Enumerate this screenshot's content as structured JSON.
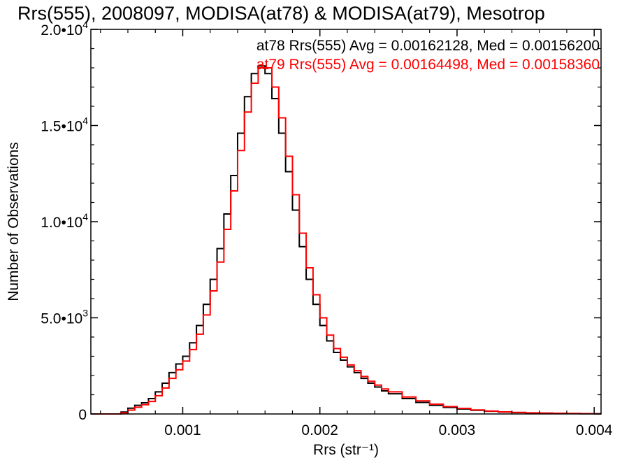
{
  "chart_data": {
    "type": "line",
    "step": true,
    "title": "Rrs(555), 2008097, MODISA(at78) & MODISA(at79), Mesotrop",
    "xlabel": "Rrs (str⁻¹)",
    "ylabel": "Number of Observations",
    "xlim": [
      0.00033,
      0.00405
    ],
    "ylim": [
      0,
      20000
    ],
    "xticks": [
      {
        "value": 0.001,
        "label": "0.001"
      },
      {
        "value": 0.002,
        "label": "0.002"
      },
      {
        "value": 0.003,
        "label": "0.003"
      },
      {
        "value": 0.004,
        "label": "0.004"
      }
    ],
    "yticks": [
      {
        "value": 0,
        "mantissa": "0",
        "exponent": ""
      },
      {
        "value": 5000,
        "mantissa": "5.0•10",
        "exponent": "3"
      },
      {
        "value": 10000,
        "mantissa": "1.0•10",
        "exponent": "4"
      },
      {
        "value": 15000,
        "mantissa": "1.5•10",
        "exponent": "4"
      },
      {
        "value": 20000,
        "mantissa": "2.0•10",
        "exponent": "4"
      }
    ],
    "grid": false,
    "annotations": [
      {
        "text": "at78 Rrs(555) Avg = 0.00162128, Med = 0.00156200",
        "color": "#000000",
        "position": "top-right"
      },
      {
        "text": "at79 Rrs(555) Avg = 0.00164498, Med = 0.00158360",
        "color": "#ff0000",
        "position": "top-right"
      }
    ],
    "series": [
      {
        "color": "#000000",
        "x": [
          0.00033,
          0.00045,
          0.00055,
          0.0006,
          0.00065,
          0.0007,
          0.00075,
          0.0008,
          0.00085,
          0.0009,
          0.00095,
          0.001,
          0.00105,
          0.0011,
          0.00115,
          0.0012,
          0.00125,
          0.0013,
          0.00135,
          0.0014,
          0.00145,
          0.0015,
          0.00155,
          0.0016,
          0.00165,
          0.0017,
          0.00175,
          0.0018,
          0.00185,
          0.0019,
          0.00195,
          0.002,
          0.00205,
          0.0021,
          0.00215,
          0.0022,
          0.00225,
          0.0023,
          0.00235,
          0.0024,
          0.00245,
          0.0025,
          0.0026,
          0.0027,
          0.0028,
          0.0029,
          0.003,
          0.0031,
          0.0032,
          0.0033,
          0.0034,
          0.0035,
          0.0036,
          0.0037,
          0.0038,
          0.0039,
          0.004,
          0.00405
        ],
        "values": [
          0,
          0,
          100,
          300,
          450,
          580,
          800,
          1150,
          1600,
          2150,
          2600,
          3000,
          3700,
          4600,
          5700,
          7000,
          8600,
          10400,
          12400,
          14600,
          16500,
          17700,
          18100,
          17700,
          16400,
          14600,
          12600,
          10600,
          8700,
          7000,
          5700,
          4600,
          3800,
          3200,
          2800,
          2450,
          2150,
          1850,
          1600,
          1400,
          1200,
          1050,
          800,
          600,
          450,
          340,
          260,
          190,
          140,
          100,
          75,
          55,
          40,
          30,
          20,
          15,
          10,
          5
        ]
      },
      {
        "color": "#ff0000",
        "x": [
          0.00033,
          0.00045,
          0.00055,
          0.0006,
          0.00065,
          0.0007,
          0.00075,
          0.0008,
          0.00085,
          0.0009,
          0.00095,
          0.001,
          0.00105,
          0.0011,
          0.00115,
          0.0012,
          0.00125,
          0.0013,
          0.00135,
          0.0014,
          0.00145,
          0.0015,
          0.00155,
          0.0016,
          0.00165,
          0.0017,
          0.00175,
          0.0018,
          0.00185,
          0.0019,
          0.00195,
          0.002,
          0.00205,
          0.0021,
          0.00215,
          0.0022,
          0.00225,
          0.0023,
          0.00235,
          0.0024,
          0.00245,
          0.0025,
          0.0026,
          0.0027,
          0.0028,
          0.0029,
          0.003,
          0.0031,
          0.0032,
          0.0033,
          0.0034,
          0.0035,
          0.0036,
          0.0037,
          0.0038,
          0.0039,
          0.004,
          0.00405
        ],
        "values": [
          0,
          0,
          60,
          200,
          350,
          480,
          650,
          950,
          1350,
          1850,
          2300,
          2750,
          3350,
          4150,
          5150,
          6400,
          7900,
          9600,
          11600,
          13700,
          15700,
          17200,
          18000,
          18000,
          17000,
          15400,
          13400,
          11400,
          9400,
          7600,
          6200,
          5000,
          4100,
          3400,
          2950,
          2550,
          2250,
          1950,
          1700,
          1500,
          1300,
          1150,
          880,
          680,
          510,
          380,
          290,
          210,
          150,
          110,
          80,
          60,
          45,
          35,
          25,
          15,
          10,
          5
        ]
      }
    ]
  }
}
